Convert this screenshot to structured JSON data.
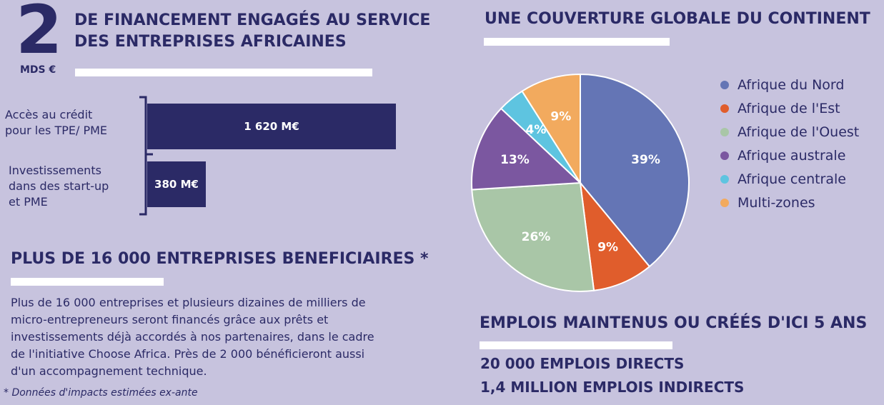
{
  "financement": {
    "amount": "2",
    "unit": "MDS €",
    "title_line1": "DE FINANCEMENT ENGAGÉS AU SERVICE",
    "title_line2": "DES ENTREPRISES AFRICAINES",
    "bars": [
      {
        "label_line1": "Accès au crédit",
        "label_line2": "pour les TPE/ PME",
        "label_line3": "",
        "value": 1620,
        "value_label": "1 620 M€"
      },
      {
        "label_line1": "Investissements",
        "label_line2": "dans des start-up",
        "label_line3": "et PME",
        "value": 380,
        "value_label": "380 M€"
      }
    ]
  },
  "entreprises": {
    "title": "PLUS DE 16 000 ENTREPRISES BENEFICIAIRES *",
    "para_lines": [
      "Plus de 16 000 entreprises et plusieurs dizaines de milliers de",
      "micro-entrepreneurs seront financés grâce aux prêts et",
      "investissements déjà accordés à nos partenaires, dans le cadre",
      "de l'initiative Choose Africa. Près de 2 000 bénéficieront aussi",
      "d'un accompagnement technique."
    ],
    "footnote": "* Données d'impacts estimées ex-ante"
  },
  "couverture": {
    "title": "UNE COUVERTURE GLOBALE DU CONTINENT"
  },
  "chart_data": {
    "type": "pie",
    "title": "UNE COUVERTURE GLOBALE DU CONTINENT",
    "legend_position": "right",
    "slices": [
      {
        "name": "Afrique du Nord",
        "value": 39,
        "label": "39%",
        "color": "#6475b5"
      },
      {
        "name": "Afrique de l'Est",
        "value": 9,
        "label": "9%",
        "color": "#e05d2c"
      },
      {
        "name": "Afrique de l'Ouest",
        "value": 26,
        "label": "26%",
        "color": "#a9c6a7"
      },
      {
        "name": "Afrique australe",
        "value": 13,
        "label": "13%",
        "color": "#7b57a0"
      },
      {
        "name": "Afrique centrale",
        "value": 4,
        "label": "4%",
        "color": "#5ec4e0"
      },
      {
        "name": "Multi-zones",
        "value": 9,
        "label": "9%",
        "color": "#f2aa5e"
      }
    ]
  },
  "emplois": {
    "title": "EMPLOIS MAINTENUS OU CRÉÉS D'ICI 5 ANS",
    "line1": "20 000 EMPLOIS DIRECTS",
    "line2": "1,4 MILLION EMPLOIS INDIRECTS"
  }
}
